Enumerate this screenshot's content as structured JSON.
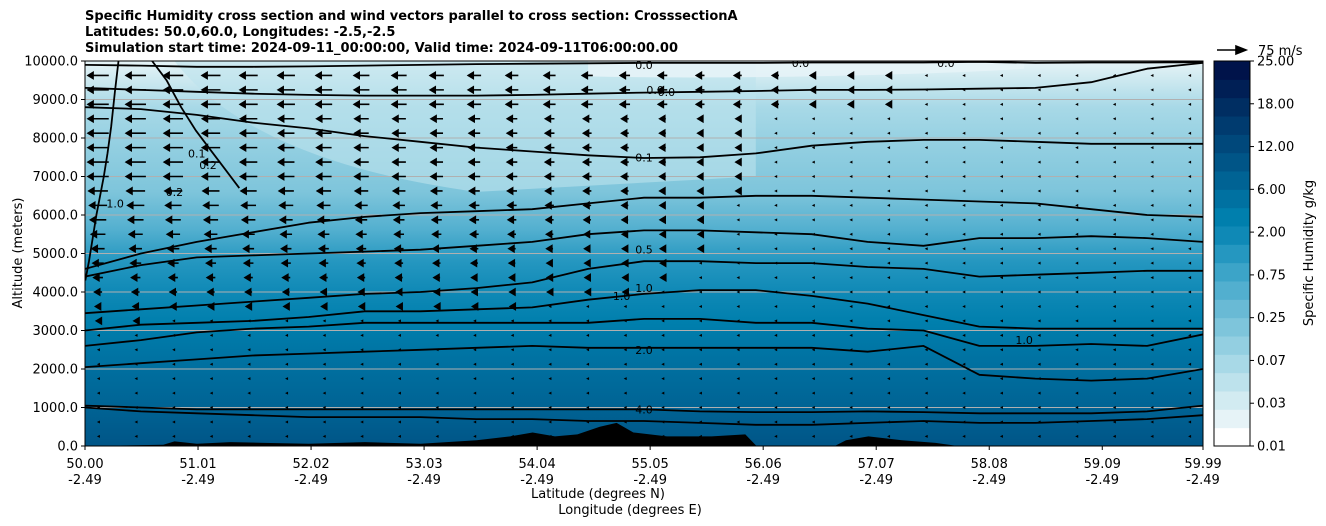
{
  "chart_data": {
    "type": "contour_cross_section",
    "title_lines": [
      "Specific Humidity cross section and wind vectors parallel to cross section: CrosssectionA",
      "Latitudes: 50.0,60.0, Longitudes: -2.5,-2.5",
      "Simulation start time: 2024-09-11_00:00:00, Valid time: 2024-09-11T06:00:00.00"
    ],
    "ylabel": "Altitude (meters)",
    "xlabel_lat": "Latitude (degrees N)",
    "xlabel_lon": "Longitude (degrees E)",
    "ylim": [
      0,
      10000
    ],
    "y_ticks": [
      "0.0",
      "1000.0",
      "2000.0",
      "3000.0",
      "4000.0",
      "5000.0",
      "6000.0",
      "7000.0",
      "8000.0",
      "9000.0",
      "10000.0"
    ],
    "x_ticks": [
      {
        "lat": "50.00",
        "lon": "-2.49"
      },
      {
        "lat": "51.01",
        "lon": "-2.49"
      },
      {
        "lat": "52.02",
        "lon": "-2.49"
      },
      {
        "lat": "53.03",
        "lon": "-2.49"
      },
      {
        "lat": "54.04",
        "lon": "-2.49"
      },
      {
        "lat": "55.05",
        "lon": "-2.49"
      },
      {
        "lat": "56.06",
        "lon": "-2.49"
      },
      {
        "lat": "57.07",
        "lon": "-2.49"
      },
      {
        "lat": "58.08",
        "lon": "-2.49"
      },
      {
        "lat": "59.09",
        "lon": "-2.49"
      },
      {
        "lat": "59.99",
        "lon": "-2.49"
      }
    ],
    "colorbar": {
      "label": "Specific Humidity g/kg",
      "tick_labels": [
        "0.01",
        "0.03",
        "0.07",
        "0.25",
        "0.75",
        "2.00",
        "6.00",
        "12.00",
        "18.00",
        "25.00"
      ],
      "colors": [
        "#ffffff",
        "#e6f3f7",
        "#d2ebf1",
        "#bde2ec",
        "#a8d9e7",
        "#93cfe1",
        "#7ec5db",
        "#69bad5",
        "#52afcf",
        "#3ca4c8",
        "#2597c0",
        "#0f89b6",
        "#007fad",
        "#0071a1",
        "#006394",
        "#005587",
        "#00487b",
        "#003b6f",
        "#002e62",
        "#001f55",
        "#00134a"
      ]
    },
    "grid": true,
    "quiver_key": "75 m/s",
    "contour_labels": [
      {
        "text": "0.0",
        "x_frac": 0.5,
        "alt": 9900
      },
      {
        "text": "0.0",
        "x_frac": 0.64,
        "alt": 9950
      },
      {
        "text": "0.0",
        "x_frac": 0.77,
        "alt": 9950
      },
      {
        "text": "0.0",
        "x_frac": 0.51,
        "alt": 9250
      },
      {
        "text": "0.0",
        "x_frac": 0.52,
        "alt": 9200
      },
      {
        "text": "0.1",
        "x_frac": 0.1,
        "alt": 7600
      },
      {
        "text": "0.1",
        "x_frac": 0.5,
        "alt": 7500
      },
      {
        "text": "0.2",
        "x_frac": 0.11,
        "alt": 7300
      },
      {
        "text": "0.2",
        "x_frac": 0.08,
        "alt": 6600
      },
      {
        "text": "1.0",
        "x_frac": 0.027,
        "alt": 6300
      },
      {
        "text": "0.5",
        "x_frac": 0.5,
        "alt": 5100
      },
      {
        "text": "1.0",
        "x_frac": 0.5,
        "alt": 4100
      },
      {
        "text": "1.0",
        "x_frac": 0.48,
        "alt": 3900
      },
      {
        "text": "1.0",
        "x_frac": 0.84,
        "alt": 2750
      },
      {
        "text": "2.0",
        "x_frac": 0.5,
        "alt": 2500
      },
      {
        "text": "4.0",
        "x_frac": 0.5,
        "alt": 950
      }
    ],
    "contours": [
      {
        "level": "0.0",
        "alt": [
          9900,
          9880,
          9850,
          9850,
          9860,
          9880,
          9900,
          9920,
          9930,
          9940,
          9950,
          9950,
          9950,
          9960,
          9960,
          9960,
          9980,
          9950,
          9960,
          9960,
          9970
        ]
      },
      {
        "level": "0.0",
        "alt": [
          9300,
          9250,
          9200,
          9150,
          9120,
          9100,
          9100,
          9100,
          9120,
          9150,
          9180,
          9200,
          9220,
          9250,
          9250,
          9260,
          9280,
          9300,
          9450,
          9800,
          9950
        ]
      },
      {
        "level": "0.1",
        "alt": [
          8800,
          8750,
          8600,
          8400,
          8250,
          8050,
          7900,
          7750,
          7650,
          7550,
          7480,
          7500,
          7600,
          7800,
          7900,
          7950,
          7950,
          7900,
          7850,
          7850,
          7850
        ]
      },
      {
        "level": "0.5",
        "alt": [
          4600,
          5000,
          5300,
          5550,
          5800,
          5950,
          6050,
          6100,
          6150,
          6300,
          6450,
          6450,
          6500,
          6500,
          6450,
          6400,
          6350,
          6300,
          6150,
          6000,
          5950
        ]
      },
      {
        "level": "0.5",
        "alt": [
          4400,
          4700,
          4900,
          4950,
          5000,
          5050,
          5100,
          5200,
          5300,
          5500,
          5600,
          5600,
          5550,
          5500,
          5300,
          5200,
          5400,
          5400,
          5450,
          5400,
          5300
        ]
      },
      {
        "level": "1.0",
        "alt": [
          3450,
          3550,
          3650,
          3750,
          3850,
          3950,
          4000,
          4100,
          4250,
          4600,
          4800,
          4800,
          4750,
          4750,
          4650,
          4600,
          4400,
          4450,
          4500,
          4550,
          4550
        ]
      },
      {
        "level": "1.0",
        "alt": [
          3000,
          3150,
          3200,
          3250,
          3350,
          3500,
          3500,
          3550,
          3600,
          3800,
          3950,
          4050,
          4050,
          3900,
          3700,
          3400,
          3100,
          3050,
          3050,
          3050,
          3050
        ]
      },
      {
        "level": "2.0",
        "alt": [
          2600,
          2750,
          2950,
          3050,
          3100,
          3200,
          3200,
          3200,
          3200,
          3200,
          3300,
          3300,
          3200,
          3200,
          3050,
          3000,
          2600,
          2600,
          2650,
          2600,
          2900
        ]
      },
      {
        "level": "2.0",
        "alt": [
          2050,
          2150,
          2250,
          2350,
          2400,
          2450,
          2500,
          2550,
          2600,
          2550,
          2550,
          2550,
          2550,
          2550,
          2450,
          2600,
          1850,
          1750,
          1700,
          1750,
          2000
        ]
      },
      {
        "level": "4.0",
        "alt": [
          1050,
          1000,
          950,
          950,
          950,
          950,
          950,
          950,
          950,
          950,
          950,
          900,
          880,
          880,
          900,
          880,
          850,
          850,
          850,
          900,
          1050
        ]
      },
      {
        "level": "4.0",
        "alt": [
          1000,
          900,
          850,
          800,
          750,
          750,
          750,
          700,
          700,
          650,
          650,
          600,
          550,
          550,
          600,
          650,
          600,
          600,
          650,
          700,
          800
        ]
      },
      {
        "level": "0.2",
        "alt": [
          10000,
          9500,
          8800,
          8200,
          7700,
          7200,
          6700
        ]
      },
      {
        "level": "1.0",
        "alt": [
          10000,
          9200,
          8300,
          7600,
          7000,
          6500,
          6000,
          5400,
          4800,
          4300
        ]
      }
    ],
    "terrain": [
      {
        "lat": 50.0,
        "alt": 0
      },
      {
        "lat": 50.7,
        "alt": 30
      },
      {
        "lat": 50.8,
        "alt": 120
      },
      {
        "lat": 51.0,
        "alt": 60
      },
      {
        "lat": 51.3,
        "alt": 100
      },
      {
        "lat": 51.6,
        "alt": 80
      },
      {
        "lat": 52.0,
        "alt": 60
      },
      {
        "lat": 52.5,
        "alt": 100
      },
      {
        "lat": 53.0,
        "alt": 60
      },
      {
        "lat": 53.5,
        "alt": 150
      },
      {
        "lat": 53.8,
        "alt": 250
      },
      {
        "lat": 54.0,
        "alt": 350
      },
      {
        "lat": 54.2,
        "alt": 250
      },
      {
        "lat": 54.4,
        "alt": 300
      },
      {
        "lat": 54.6,
        "alt": 500
      },
      {
        "lat": 54.75,
        "alt": 600
      },
      {
        "lat": 54.9,
        "alt": 350
      },
      {
        "lat": 55.2,
        "alt": 250
      },
      {
        "lat": 55.6,
        "alt": 250
      },
      {
        "lat": 55.9,
        "alt": 300
      },
      {
        "lat": 56.0,
        "alt": 0
      },
      {
        "lat": 56.7,
        "alt": 0
      },
      {
        "lat": 56.8,
        "alt": 150
      },
      {
        "lat": 57.0,
        "alt": 250
      },
      {
        "lat": 57.3,
        "alt": 150
      },
      {
        "lat": 57.6,
        "alt": 80
      },
      {
        "lat": 57.8,
        "alt": 0
      }
    ]
  }
}
